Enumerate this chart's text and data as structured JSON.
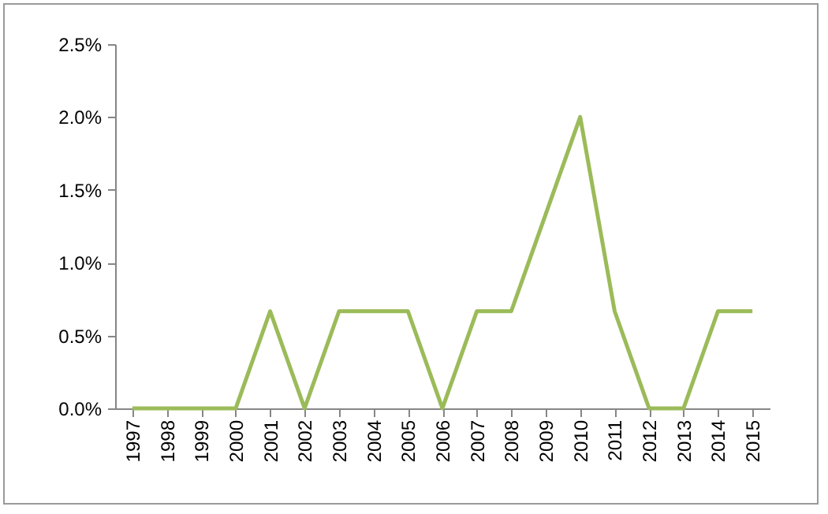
{
  "chart_data": {
    "type": "line",
    "categories": [
      "1997",
      "1998",
      "1999",
      "2000",
      "2001",
      "2002",
      "2003",
      "2004",
      "2005",
      "2006",
      "2007",
      "2008",
      "2009",
      "2010",
      "2011",
      "2012",
      "2013",
      "2014",
      "2015"
    ],
    "values": [
      0,
      0,
      0,
      0,
      0.667,
      0,
      0.667,
      0.667,
      0.667,
      0,
      0.667,
      0.667,
      1.333,
      2.0,
      0.667,
      0,
      0,
      0.667,
      0.667
    ],
    "color": "#9bbb59",
    "ylim": [
      0,
      2.5
    ],
    "yticks": [
      {
        "value": 0,
        "label": "0.0%"
      },
      {
        "value": 0.5,
        "label": "0.5%"
      },
      {
        "value": 1,
        "label": "1.0%"
      },
      {
        "value": 1.5,
        "label": "1.5%"
      },
      {
        "value": 2,
        "label": "2.0%"
      },
      {
        "value": 2.5,
        "label": "2.5%"
      }
    ]
  }
}
